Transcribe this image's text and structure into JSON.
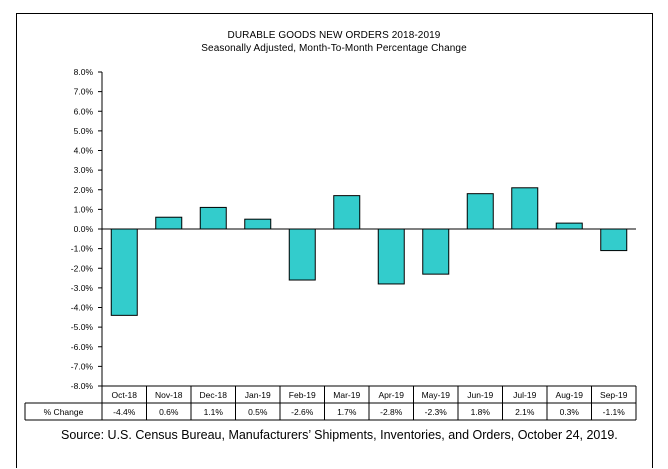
{
  "chart_data": {
    "type": "bar",
    "title": "DURABLE GOODS NEW ORDERS 2018-2019",
    "subtitle": "Seasonally Adjusted,  Month-To-Month  Percentage Change",
    "categories": [
      "Oct-18",
      "Nov-18",
      "Dec-18",
      "Jan-19",
      "Feb-19",
      "Mar-19",
      "Apr-19",
      "May-19",
      "Jun-19",
      "Jul-19",
      "Aug-19",
      "Sep-19"
    ],
    "values": [
      -4.4,
      0.6,
      1.1,
      0.5,
      -2.6,
      1.7,
      -2.8,
      -2.3,
      1.8,
      2.1,
      0.3,
      -1.1
    ],
    "value_labels": [
      "-4.4%",
      "0.6%",
      "1.1%",
      "0.5%",
      "-2.6%",
      "1.7%",
      "-2.8%",
      "-2.3%",
      "1.8%",
      "2.1%",
      "0.3%",
      "-1.1%"
    ],
    "ylim": [
      -8,
      8
    ],
    "ytick_labels": [
      "8.0%",
      "7.0%",
      "6.0%",
      "5.0%",
      "4.0%",
      "3.0%",
      "2.0%",
      "1.0%",
      "0.0%",
      "-1.0%",
      "-2.0%",
      "-3.0%",
      "-4.0%",
      "-5.0%",
      "-6.0%",
      "-7.0%",
      "-8.0%"
    ],
    "table_row_label": "% Change",
    "bar_color": "#33CCCC",
    "grid": false
  },
  "source_note": "Source: U.S. Census Bureau, Manufacturers’ Shipments, Inventories, and Orders, October 24, 2019."
}
